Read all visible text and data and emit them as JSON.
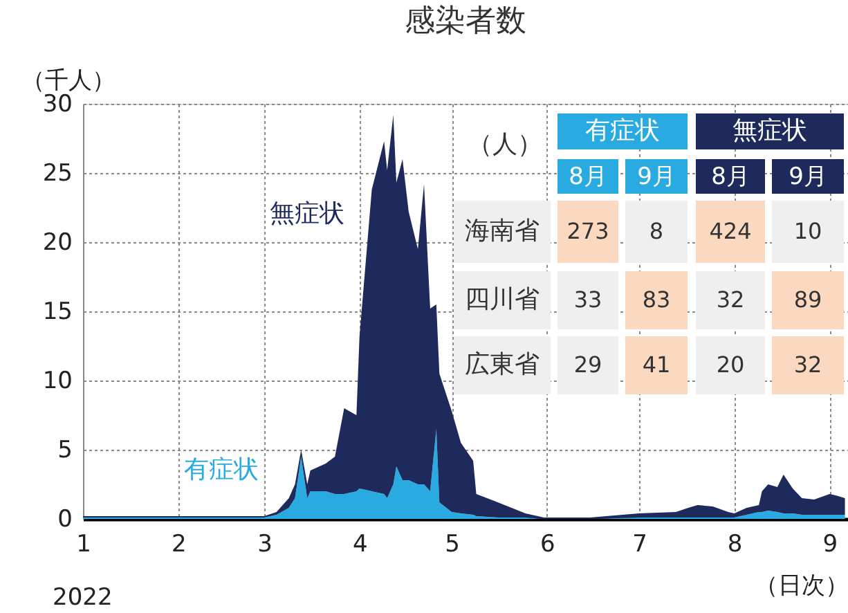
{
  "chart_data": [
    {
      "type": "area",
      "title": "感染者数",
      "xlabel": "（日次）",
      "ylabel": "（千人）",
      "stacked": true,
      "grid": true,
      "legend": false,
      "x": [
        "2022-01-01",
        "2022-02-01",
        "2022-03-01",
        "2022-03-05",
        "2022-03-09",
        "2022-03-11",
        "2022-03-13",
        "2022-03-15",
        "2022-03-16",
        "2022-03-21",
        "2022-03-24",
        "2022-03-27",
        "2022-03-31",
        "2022-04-01",
        "2022-04-05",
        "2022-04-09",
        "2022-04-10",
        "2022-04-12",
        "2022-04-13",
        "2022-04-15",
        "2022-04-17",
        "2022-04-20",
        "2022-04-22",
        "2022-04-24",
        "2022-04-26",
        "2022-04-27",
        "2022-05-01",
        "2022-05-04",
        "2022-05-08",
        "2022-05-09",
        "2022-05-16",
        "2022-05-25",
        "2022-05-31",
        "2022-06-05",
        "2022-06-15",
        "2022-07-01",
        "2022-07-13",
        "2022-07-17",
        "2022-07-20",
        "2022-07-25",
        "2022-07-30",
        "2022-08-01",
        "2022-08-05",
        "2022-08-09",
        "2022-08-10",
        "2022-08-12",
        "2022-08-15",
        "2022-08-17",
        "2022-08-20",
        "2022-08-23",
        "2022-08-27",
        "2022-09-01",
        "2022-09-03",
        "2022-09-06"
      ],
      "series": [
        {
          "name": "有症状",
          "color": "#29abe2",
          "values": [
            0.1,
            0.1,
            0.1,
            0.3,
            0.8,
            1.5,
            4.5,
            1.5,
            2.0,
            2.0,
            1.8,
            1.8,
            2.0,
            2.2,
            2.0,
            1.8,
            1.5,
            2.5,
            3.8,
            2.8,
            2.8,
            2.5,
            2.5,
            2.0,
            6.5,
            1.2,
            0.5,
            0.4,
            0.3,
            0.2,
            0.1,
            0.1,
            0,
            0,
            0,
            0.1,
            0.1,
            0.1,
            0.1,
            0.1,
            0.1,
            0.1,
            0.3,
            0.5,
            0.5,
            0.6,
            0.5,
            0.4,
            0.4,
            0.3,
            0.3,
            0.3,
            0.3,
            0.3
          ]
        },
        {
          "name": "無症状",
          "color": "#1f2a5c",
          "values": [
            0.1,
            0.1,
            0.1,
            0.2,
            0.7,
            1.0,
            0.5,
            1.0,
            1.5,
            2.0,
            2.7,
            6.2,
            5.5,
            11.0,
            21.8,
            25.5,
            23.7,
            26.7,
            20.5,
            23.2,
            19.4,
            17.0,
            21.7,
            13.2,
            9.0,
            9.3,
            7.3,
            5.1,
            3.9,
            1.6,
            1.1,
            0.3,
            0.1,
            0.1,
            0.1,
            0.3,
            0.4,
            0.7,
            0.9,
            0.8,
            0.4,
            0.3,
            0.5,
            0.5,
            1.5,
            1.9,
            1.8,
            2.8,
            1.8,
            1.2,
            1.1,
            1.5,
            1.4,
            1.2
          ]
        }
      ],
      "xlim": [
        "2022-01-01",
        "2022-09-07"
      ],
      "xticks": [
        {
          "value": "2022-01-01",
          "label": "1"
        },
        {
          "value": "2022-02-01",
          "label": "2"
        },
        {
          "value": "2022-03-01",
          "label": "3"
        },
        {
          "value": "2022-04-01",
          "label": "4"
        },
        {
          "value": "2022-05-01",
          "label": "5"
        },
        {
          "value": "2022-06-01",
          "label": "6"
        },
        {
          "value": "2022-07-01",
          "label": "7"
        },
        {
          "value": "2022-08-01",
          "label": "8"
        },
        {
          "value": "2022-09-01",
          "label": "9"
        }
      ],
      "ylim": [
        0,
        30
      ],
      "yticks": [
        0,
        5,
        10,
        15,
        20,
        25,
        30
      ],
      "annotations": [
        "2022"
      ]
    },
    {
      "type": "heatmap",
      "categories": [
        "8月",
        "9月",
        "8月",
        "9月"
      ],
      "y_categories": [
        "海南省",
        "四川省",
        "広東省"
      ],
      "cells": [
        [
          273,
          8,
          424,
          10
        ],
        [
          33,
          83,
          32,
          89
        ],
        [
          29,
          41,
          20,
          32
        ]
      ],
      "data_labels": true,
      "annotations": [
        "（人）",
        "有症状",
        "無症状"
      ]
    }
  ]
}
